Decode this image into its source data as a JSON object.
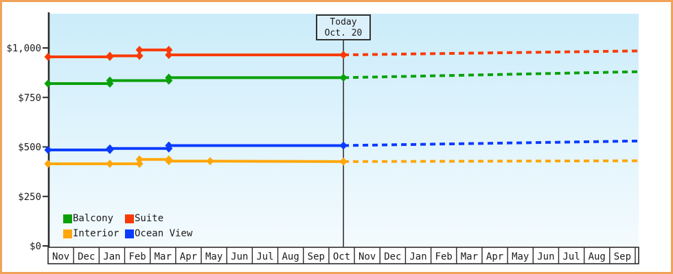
{
  "frame": {
    "border_color": "#f0a258",
    "background_color": "#ffffff",
    "plot_bg_top": "#cbecfa",
    "plot_bg_bottom": "#f4fbfe",
    "axis_color": "#2a2a2a"
  },
  "today_box": {
    "line1": "Today",
    "line2": "Oct. 20"
  },
  "legend": {
    "position": "bottom-left",
    "items": [
      {
        "label": "Balcony",
        "color": "#0aa00a"
      },
      {
        "label": "Suite",
        "color": "#f93a06"
      },
      {
        "label": "Interior",
        "color": "#ffa60a"
      },
      {
        "label": "Ocean View",
        "color": "#0a3bff"
      }
    ]
  },
  "chart_data": {
    "type": "line",
    "title": "",
    "grid": false,
    "y_axis": {
      "tick_labels": [
        "$0",
        "$250",
        "$500",
        "$750",
        "$1,000"
      ],
      "tick_values": [
        0,
        250,
        500,
        750,
        1000
      ],
      "ylim": [
        0,
        1170
      ]
    },
    "x_axis": {
      "categories": [
        "Nov",
        "Dec",
        "Jan",
        "Feb",
        "Mar",
        "Apr",
        "May",
        "Jun",
        "Jul",
        "Aug",
        "Sep",
        "Oct",
        "Nov",
        "Dec",
        "Jan",
        "Feb",
        "Mar",
        "Apr",
        "May",
        "Jun",
        "Jul",
        "Aug",
        "Sep"
      ],
      "months_shown": 23.1
    },
    "today_marker": {
      "label": [
        "Today",
        "Oct. 20"
      ],
      "month_index": 11.57
    },
    "series": [
      {
        "name": "Ocean View",
        "color": "#0a3bff",
        "history": [
          [
            0,
            485
          ],
          [
            2.42,
            485
          ],
          [
            2.42,
            492
          ],
          [
            4.73,
            492
          ],
          [
            4.73,
            507
          ],
          [
            11.57,
            507
          ]
        ],
        "forecast": [
          [
            11.57,
            507
          ],
          [
            23.1,
            530
          ]
        ]
      },
      {
        "name": "Interior",
        "color": "#ffa60a",
        "history": [
          [
            0,
            415
          ],
          [
            2.42,
            415
          ],
          [
            3.58,
            415
          ],
          [
            3.58,
            437
          ],
          [
            4.73,
            437
          ],
          [
            4.73,
            428
          ],
          [
            6.35,
            428
          ],
          [
            11.57,
            426
          ]
        ],
        "forecast": [
          [
            11.57,
            426
          ],
          [
            23.1,
            430
          ]
        ]
      },
      {
        "name": "Balcony",
        "color": "#0aa00a",
        "history": [
          [
            0,
            820
          ],
          [
            2.42,
            820
          ],
          [
            2.42,
            835
          ],
          [
            4.73,
            835
          ],
          [
            4.73,
            850
          ],
          [
            11.57,
            850
          ]
        ],
        "forecast": [
          [
            11.57,
            850
          ],
          [
            23.1,
            880
          ]
        ]
      },
      {
        "name": "Suite",
        "color": "#f93a06",
        "history": [
          [
            0,
            955
          ],
          [
            2.42,
            955
          ],
          [
            2.42,
            960
          ],
          [
            3.58,
            960
          ],
          [
            3.58,
            990
          ],
          [
            4.73,
            990
          ],
          [
            4.73,
            965
          ],
          [
            11.57,
            965
          ]
        ],
        "forecast": [
          [
            11.57,
            965
          ],
          [
            23.1,
            985
          ]
        ]
      }
    ]
  }
}
